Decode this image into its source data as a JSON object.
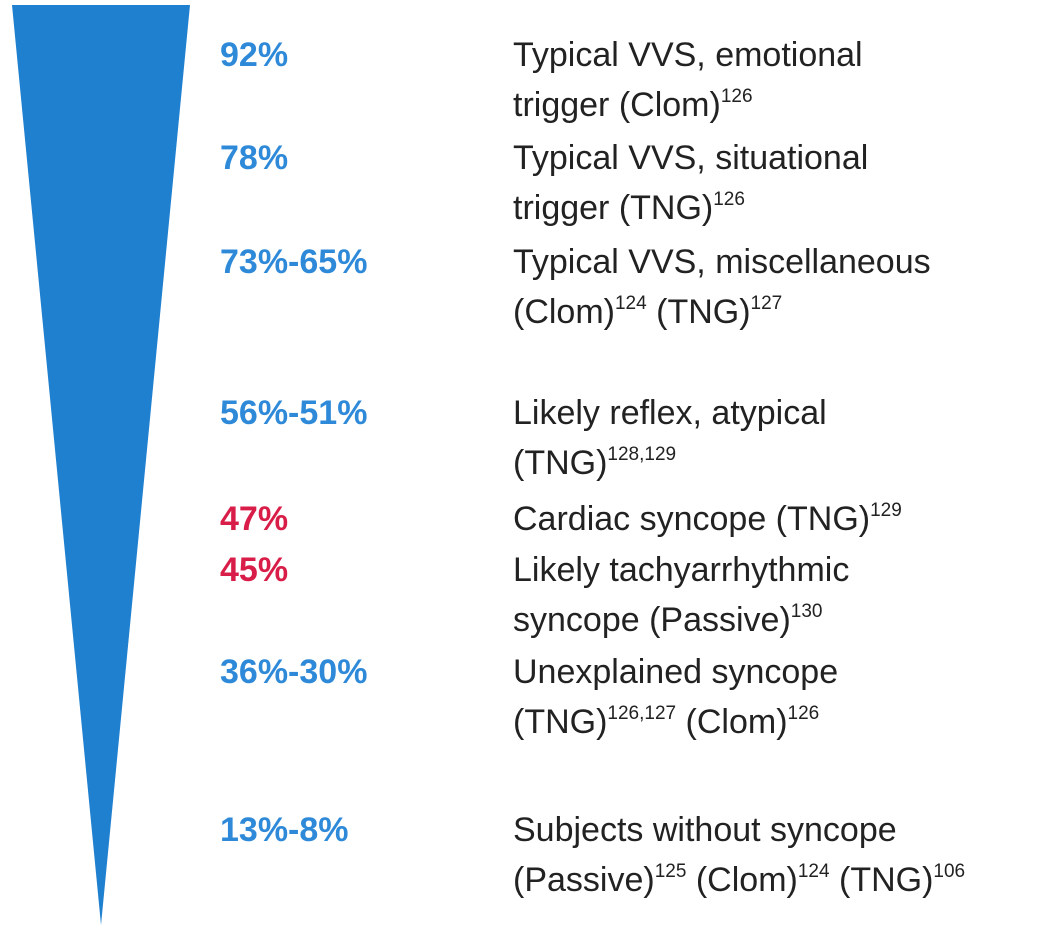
{
  "rows": [
    {
      "pct": "92%",
      "color": "#2e8ad8",
      "lines": [
        [
          {
            "text": "Typical VVS, emotional"
          }
        ],
        [
          {
            "text": "trigger (Clom)",
            "sup": "126"
          }
        ]
      ]
    },
    {
      "pct": "78%",
      "color": "#2e8ad8",
      "lines": [
        [
          {
            "text": "Typical VVS, situational"
          }
        ],
        [
          {
            "text": "trigger (TNG)",
            "sup": "126"
          }
        ]
      ]
    },
    {
      "pct": "73%-65%",
      "color": "#2e8ad8",
      "lines": [
        [
          {
            "text": "Typical VVS, miscellaneous"
          }
        ],
        [
          {
            "text": "(Clom)",
            "sup": "124"
          },
          {
            "text": " (TNG)",
            "sup": "127"
          }
        ]
      ]
    },
    {
      "pct": "56%-51%",
      "color": "#2e8ad8",
      "lines": [
        [
          {
            "text": "Likely reflex, atypical"
          }
        ],
        [
          {
            "text": "(TNG)",
            "sup": "128,129"
          }
        ]
      ]
    },
    {
      "pct": "47%",
      "color": "#d81e48",
      "lines": [
        [
          {
            "text": "Cardiac syncope (TNG)",
            "sup": "129"
          }
        ]
      ]
    },
    {
      "pct": "45%",
      "color": "#d81e48",
      "lines": [
        [
          {
            "text": "Likely tachyarrhythmic"
          }
        ],
        [
          {
            "text": "syncope (Passive)",
            "sup": "130"
          }
        ]
      ]
    },
    {
      "pct": "36%-30%",
      "color": "#2e8ad8",
      "lines": [
        [
          {
            "text": "Unexplained syncope"
          }
        ],
        [
          {
            "text": "(TNG)",
            "sup": "126,127"
          },
          {
            "text": " (Clom)",
            "sup": "126"
          }
        ]
      ]
    },
    {
      "pct": "13%-8%",
      "color": "#2e8ad8",
      "lines": [
        [
          {
            "text": "Subjects without syncope"
          }
        ],
        [
          {
            "text": "(Passive)",
            "sup": "125"
          },
          {
            "text": " (Clom)",
            "sup": "124"
          },
          {
            "text": " (TNG)",
            "sup": "106"
          }
        ]
      ]
    }
  ]
}
